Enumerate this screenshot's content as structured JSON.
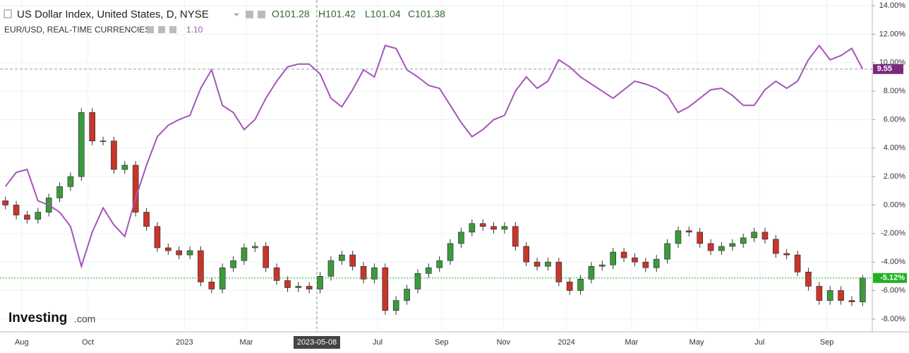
{
  "chart_data": {
    "type": "candlestick",
    "title": "US Dollar Index, United States, D, NYSE",
    "ohlc_labels": [
      "O101.28",
      "H101.42",
      "L101.04",
      "C101.38"
    ],
    "compare_title": "EUR/USD, REAL-TIME CURRENCIES",
    "compare_price": "1.10",
    "logo": [
      "Investing",
      ".com"
    ],
    "xlim": [
      0,
      80
    ],
    "xticks": [
      {
        "value": 2,
        "label": "Aug"
      },
      {
        "value": 8.1,
        "label": "Oct"
      },
      {
        "value": 17,
        "label": "2023"
      },
      {
        "value": 22.7,
        "label": "Mar"
      },
      {
        "value": 34.8,
        "label": "Jul"
      },
      {
        "value": 40.7,
        "label": "Sep"
      },
      {
        "value": 46.4,
        "label": "Nov"
      },
      {
        "value": 52.2,
        "label": "2024"
      },
      {
        "value": 58.2,
        "label": "Mar"
      },
      {
        "value": 64.2,
        "label": "May"
      },
      {
        "value": 70,
        "label": "Jul"
      },
      {
        "value": 76.2,
        "label": "Sep"
      }
    ],
    "crosshair": {
      "value": 29.2,
      "label": "2023-05-08"
    },
    "ylim": [
      -8.9,
      14.4
    ],
    "yticks": [
      {
        "value": 14,
        "label": "14.00%"
      },
      {
        "value": 12,
        "label": "12.00%"
      },
      {
        "value": 10,
        "label": "10.00%"
      },
      {
        "value": 8,
        "label": "8.00%"
      },
      {
        "value": 6,
        "label": "6.00%"
      },
      {
        "value": 4,
        "label": "4.00%"
      },
      {
        "value": 2,
        "label": "2.00%"
      },
      {
        "value": 0,
        "label": "0.00%"
      },
      {
        "value": -2,
        "label": "-2.00%"
      },
      {
        "value": -4,
        "label": "-4.00%"
      },
      {
        "value": -6,
        "label": "-6.00%"
      },
      {
        "value": -8,
        "label": "-8.00%"
      }
    ],
    "grid": true,
    "series": [
      {
        "name": "US Dollar Index",
        "type": "candlestick",
        "up_color": "#3c9a3c",
        "down_color": "#c8352b",
        "last_color": "#22b022",
        "last_label": "-5.12%",
        "open": [
          0.3,
          0.0,
          -0.7,
          -1.0,
          -0.5,
          0.5,
          1.3,
          2.0,
          6.5,
          4.5,
          4.5,
          2.5,
          2.8,
          -0.5,
          -1.5,
          -3.0,
          -3.2,
          -3.5,
          -3.2,
          -5.4,
          -5.9,
          -4.4,
          -3.9,
          -3.0,
          -2.9,
          -4.4,
          -5.3,
          -5.8,
          -5.7,
          -5.9,
          -5.0,
          -3.9,
          -3.5,
          -4.3,
          -5.2,
          -4.4,
          -7.4,
          -6.7,
          -5.9,
          -4.8,
          -4.4,
          -3.9,
          -2.7,
          -1.9,
          -1.3,
          -1.5,
          -1.7,
          -1.5,
          -2.9,
          -4.0,
          -4.3,
          -4.0,
          -5.4,
          -6.0,
          -5.2,
          -4.3,
          -4.2,
          -3.3,
          -3.7,
          -4.0,
          -4.4,
          -3.8,
          -2.7,
          -1.8,
          -1.9,
          -2.7,
          -3.2,
          -2.9,
          -2.7,
          -2.3,
          -1.9,
          -2.4,
          -3.4,
          -3.5,
          -4.7,
          -5.7,
          -6.7,
          -6.0,
          -6.7,
          -6.8
        ],
        "high": [
          0.6,
          0.3,
          -0.4,
          -0.2,
          0.8,
          1.6,
          2.3,
          6.8,
          6.8,
          4.8,
          4.8,
          3.1,
          3.1,
          -0.2,
          -1.2,
          -2.7,
          -2.9,
          -2.9,
          -2.9,
          -5.1,
          -4.1,
          -3.6,
          -2.7,
          -2.6,
          -2.6,
          -4.1,
          -5.0,
          -5.4,
          -5.4,
          -4.7,
          -3.6,
          -3.2,
          -3.2,
          -4.0,
          -4.1,
          -4.1,
          -6.4,
          -5.6,
          -4.5,
          -4.1,
          -3.6,
          -2.4,
          -1.6,
          -1.0,
          -1.0,
          -1.2,
          -1.2,
          -1.2,
          -2.6,
          -3.7,
          -3.7,
          -3.7,
          -5.1,
          -4.9,
          -4.0,
          -3.9,
          -3.0,
          -3.0,
          -3.4,
          -3.7,
          -3.5,
          -2.4,
          -1.5,
          -1.5,
          -1.6,
          -2.4,
          -2.6,
          -2.4,
          -2.0,
          -1.6,
          -1.6,
          -2.1,
          -3.1,
          -3.2,
          -4.4,
          -5.4,
          -5.7,
          -5.7,
          -6.4,
          -4.9
        ],
        "low": [
          -0.3,
          -1.0,
          -1.3,
          -1.3,
          -0.8,
          0.2,
          1.0,
          1.7,
          4.2,
          4.2,
          2.2,
          2.2,
          -0.8,
          -1.8,
          -3.3,
          -3.5,
          -3.8,
          -3.8,
          -5.7,
          -6.2,
          -6.2,
          -4.7,
          -4.2,
          -3.3,
          -4.7,
          -5.6,
          -6.1,
          -6.1,
          -6.2,
          -6.2,
          -5.3,
          -4.2,
          -4.6,
          -5.5,
          -5.5,
          -7.7,
          -7.7,
          -7.0,
          -6.2,
          -5.1,
          -4.7,
          -4.2,
          -3.0,
          -2.2,
          -1.8,
          -2.0,
          -2.0,
          -3.2,
          -4.3,
          -4.6,
          -4.6,
          -5.7,
          -6.3,
          -6.3,
          -5.5,
          -4.6,
          -4.5,
          -4.0,
          -4.3,
          -4.7,
          -4.7,
          -4.1,
          -3.0,
          -2.2,
          -3.0,
          -3.5,
          -3.5,
          -3.2,
          -3.0,
          -2.6,
          -2.7,
          -3.7,
          -3.8,
          -5.0,
          -6.0,
          -7.0,
          -7.0,
          -7.0,
          -7.1,
          -7.1
        ],
        "close": [
          0.0,
          -0.7,
          -1.0,
          -0.5,
          0.5,
          1.3,
          2.0,
          6.5,
          4.5,
          4.5,
          2.5,
          2.8,
          -0.5,
          -1.5,
          -3.0,
          -3.2,
          -3.5,
          -3.2,
          -5.4,
          -5.9,
          -4.4,
          -3.9,
          -3.0,
          -2.9,
          -4.4,
          -5.3,
          -5.8,
          -5.7,
          -5.9,
          -5.0,
          -3.9,
          -3.5,
          -4.3,
          -5.2,
          -4.4,
          -7.4,
          -6.7,
          -5.9,
          -4.8,
          -4.4,
          -3.9,
          -2.7,
          -1.9,
          -1.3,
          -1.5,
          -1.7,
          -1.5,
          -2.9,
          -4.0,
          -4.3,
          -4.0,
          -5.4,
          -6.0,
          -5.2,
          -4.3,
          -4.2,
          -3.3,
          -3.7,
          -4.0,
          -4.4,
          -3.8,
          -2.7,
          -1.8,
          -1.9,
          -2.7,
          -3.2,
          -2.9,
          -2.7,
          -2.3,
          -1.9,
          -2.4,
          -3.4,
          -3.5,
          -4.7,
          -5.7,
          -6.7,
          -6.0,
          -6.7,
          -6.8,
          -5.12
        ]
      },
      {
        "name": "EUR/USD",
        "type": "line",
        "color": "#a456b8",
        "last_color": "#7a2a7e",
        "last_label": "9.55",
        "values": [
          1.3,
          2.3,
          2.5,
          0.3,
          0.0,
          -0.5,
          -1.5,
          -4.3,
          -1.9,
          -0.2,
          -1.4,
          -2.2,
          0.5,
          2.8,
          4.8,
          5.6,
          6.0,
          6.3,
          8.2,
          9.5,
          7.0,
          6.5,
          5.3,
          6.0,
          7.5,
          8.7,
          9.7,
          9.9,
          9.9,
          9.2,
          7.5,
          6.9,
          8.1,
          9.5,
          9.0,
          11.2,
          11.0,
          9.5,
          9.0,
          8.4,
          8.2,
          7.0,
          5.8,
          4.8,
          5.3,
          6.0,
          6.3,
          8.0,
          9.0,
          8.2,
          8.7,
          10.2,
          9.7,
          9.0,
          8.5,
          8.0,
          7.5,
          8.1,
          8.7,
          8.5,
          8.2,
          7.7,
          6.5,
          6.9,
          7.5,
          8.1,
          8.2,
          7.7,
          7.0,
          7.0,
          8.1,
          8.7,
          8.2,
          8.7,
          10.2,
          11.2,
          10.2,
          10.5,
          11.0,
          9.55
        ]
      }
    ]
  }
}
